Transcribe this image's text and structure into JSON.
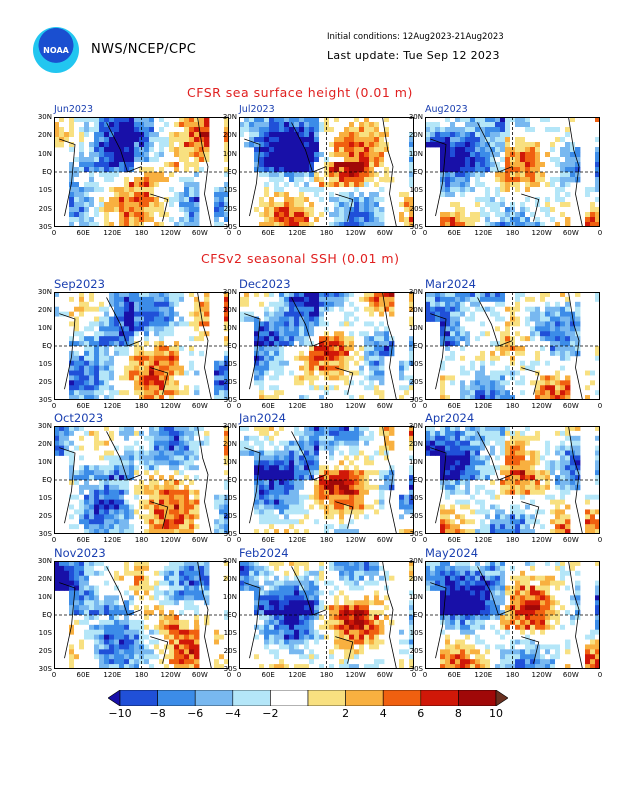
{
  "header": {
    "agency": "NWS/NCEP/CPC",
    "initial_conditions": "Initial conditions: 12Aug2023-21Aug2023",
    "last_update": "Last update: Tue Sep 12 2023",
    "logo_text": "NOAA"
  },
  "section_cfsr": {
    "title": "CFSR sea surface height (0.01 m)",
    "panels": [
      "Jun2023",
      "Jul2023",
      "Aug2023"
    ]
  },
  "section_cfsv2": {
    "title": "CFSv2 seasonal SSH (0.01 m)",
    "panels": [
      "Sep2023",
      "Dec2023",
      "Mar2024",
      "Oct2023",
      "Jan2024",
      "Apr2024",
      "Nov2023",
      "Feb2024",
      "May2024"
    ]
  },
  "axes": {
    "y_ticks": [
      "30N",
      "20N",
      "10N",
      "EQ",
      "10S",
      "20S",
      "30S"
    ],
    "x_ticks": [
      "0",
      "60E",
      "120E",
      "180",
      "120W",
      "60W",
      "0"
    ]
  },
  "colorbar": {
    "labels": [
      "−10",
      "−8",
      "−6",
      "−4",
      "−2",
      "2",
      "4",
      "6",
      "8",
      "10"
    ],
    "colors": [
      "#1810a8",
      "#2050d8",
      "#3c8ce8",
      "#78b8f0",
      "#b4e6f8",
      "#ffffff",
      "#f8e080",
      "#f8b040",
      "#f06010",
      "#d01808",
      "#a00808",
      "#6a3020"
    ]
  }
}
